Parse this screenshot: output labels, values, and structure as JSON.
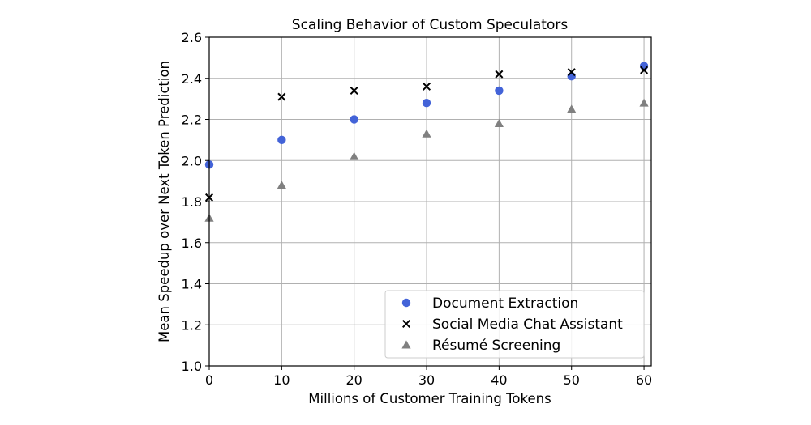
{
  "chart_data": {
    "type": "scatter",
    "title": "Scaling Behavior of Custom Speculators",
    "xlabel": "Millions of Customer Training Tokens",
    "ylabel": "Mean Speedup over Next Token Prediction",
    "xlim": [
      0,
      61
    ],
    "ylim": [
      1.0,
      2.6
    ],
    "xticks": [
      "0",
      "10",
      "20",
      "30",
      "40",
      "50",
      "60"
    ],
    "yticks": [
      "1.0",
      "1.2",
      "1.4",
      "1.6",
      "1.8",
      "2.0",
      "2.2",
      "2.4",
      "2.6"
    ],
    "grid": true,
    "legend_position": "lower-right",
    "series": [
      {
        "name": "Document Extraction",
        "marker": "circle",
        "color": "#4363d8",
        "x": [
          0,
          10,
          20,
          30,
          40,
          50,
          60
        ],
        "y": [
          1.98,
          2.1,
          2.2,
          2.28,
          2.34,
          2.41,
          2.46
        ]
      },
      {
        "name": "Social Media Chat Assistant",
        "marker": "x",
        "color": "#000000",
        "x": [
          0,
          10,
          20,
          30,
          40,
          50,
          60
        ],
        "y": [
          1.82,
          2.31,
          2.34,
          2.36,
          2.42,
          2.43,
          2.44
        ]
      },
      {
        "name": "Résumé Screening",
        "marker": "triangle",
        "color": "#808080",
        "x": [
          0,
          10,
          20,
          30,
          40,
          50,
          60
        ],
        "y": [
          1.72,
          1.88,
          2.02,
          2.13,
          2.18,
          2.25,
          2.28
        ]
      }
    ]
  }
}
